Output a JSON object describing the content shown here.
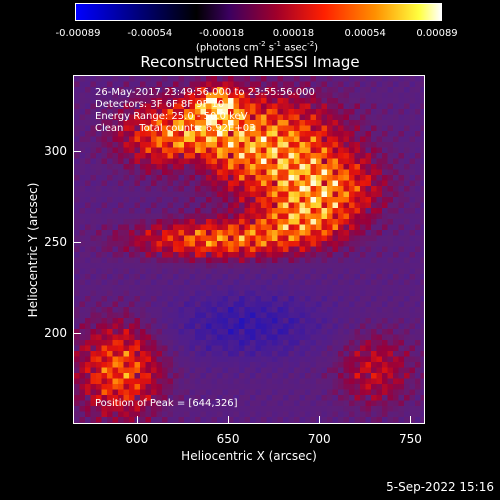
{
  "chart_data": {
    "type": "heatmap",
    "title": "Reconstructed RHESSI Image",
    "xlabel": "Heliocentric X (arcsec)",
    "ylabel": "Heliocentric Y (arcsec)",
    "xlim": [
      565,
      758
    ],
    "ylim": [
      150,
      342
    ],
    "x_ticks": [
      600,
      650,
      700,
      750
    ],
    "y_ticks": [
      200,
      250,
      300
    ],
    "colorbar": {
      "ticks": [
        "-0.00089",
        "-0.00054",
        "-0.00018",
        "0.00018",
        "0.00054",
        "0.00089"
      ],
      "range": [
        -0.00089,
        0.00089
      ],
      "unit_prefix": "(photons cm",
      "unit_exp1": "-2",
      "unit_mid": " s",
      "unit_exp2": "-1",
      "unit_mid2": " asec",
      "unit_exp3": "-2",
      "unit_suffix": ")"
    },
    "annotations": {
      "time_range": "26-May-2017 23:49:56.000 to 23:55:56.000",
      "detectors": "Detectors: 3F 6F 8F 9F 10",
      "energy": "Energy Range: 25.0 - 50.0 keV",
      "method": "Clean     Total counts: 6.92E+03",
      "peak": "Position of Peak = [644,326]"
    },
    "peak": [
      644,
      326
    ],
    "colors": {
      "negative": "#0000ff",
      "zero": "#000000",
      "positive_low": "#a0002a",
      "positive_mid": "#ff2000",
      "positive_high": "#ffff40",
      "max": "#ffffff"
    }
  },
  "footer_date": "5-Sep-2022 15:16"
}
